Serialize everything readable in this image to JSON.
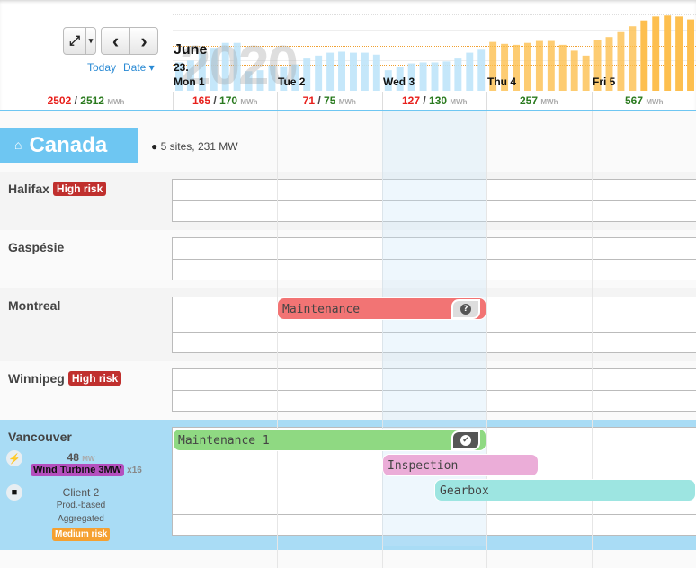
{
  "toolbar": {
    "expand_icon": "expand-icon",
    "prev_icon": "chevron-left-icon",
    "next_icon": "chevron-right-icon",
    "prev": "‹",
    "next": "›",
    "expand": "⤢",
    "caret": "▾",
    "today": "Today",
    "date": "Date ▾"
  },
  "header": {
    "month": "June",
    "week": "23.",
    "year_watermark": "2020",
    "total": {
      "a": "2502",
      "b": "2512",
      "unit": "MWh"
    },
    "days": [
      {
        "label": "Mon 1",
        "a": "165",
        "b": "170",
        "unit": "MWh"
      },
      {
        "label": "Tue 2",
        "a": "71",
        "b": "75",
        "unit": "MWh"
      },
      {
        "label": "Wed 3",
        "a": "127",
        "b": "130",
        "unit": "MWh"
      },
      {
        "label": "Thu 4",
        "a": "",
        "b": "257",
        "unit": "MWh"
      },
      {
        "label": "Fri 5",
        "a": "",
        "b": "567",
        "unit": "MWh"
      }
    ],
    "bars": {
      "colors": {
        "past": "#bfe4f9",
        "forecast": "#fdbf4f"
      },
      "values": [
        29,
        31,
        39,
        44,
        49,
        49,
        20,
        21,
        26,
        25,
        27,
        33,
        36,
        39,
        40,
        39,
        39,
        37,
        21,
        24,
        28,
        29,
        29,
        30,
        33,
        39,
        42,
        50,
        48,
        47,
        49,
        51,
        51,
        47,
        41,
        36,
        52,
        55,
        60,
        66,
        72,
        76,
        77,
        76,
        73
      ],
      "forecast_from_index": 27
    }
  },
  "region": {
    "name": "Canada",
    "info": "5 sites, 231 MW",
    "color": "#6ec6f2"
  },
  "sites": [
    {
      "name": "Halifax",
      "risk": "High risk"
    },
    {
      "name": "Gaspésie",
      "risk": ""
    },
    {
      "name": "Montreal",
      "risk": "",
      "events": [
        {
          "label": "Maintenance",
          "color": "#f27474",
          "status_icon": "question-icon",
          "glyph": "?"
        }
      ]
    },
    {
      "name": "Winnipeg",
      "risk": "High risk"
    },
    {
      "name": "Vancouver",
      "power": "48",
      "power_unit": "MW",
      "turbine": "Wind Turbine 3MW",
      "turbine_count": "x16",
      "client": "Client 2",
      "contract": "Prod.-based",
      "mode": "Aggregated",
      "risk": "Medium risk",
      "events": [
        {
          "label": "Maintenance 1",
          "color": "#8fd982",
          "status_icon": "check-icon",
          "glyph": "✔"
        },
        {
          "label": "Inspection",
          "color": "#ebadd8"
        },
        {
          "label": "Gearbox",
          "color": "#9de5e1"
        }
      ]
    }
  ]
}
